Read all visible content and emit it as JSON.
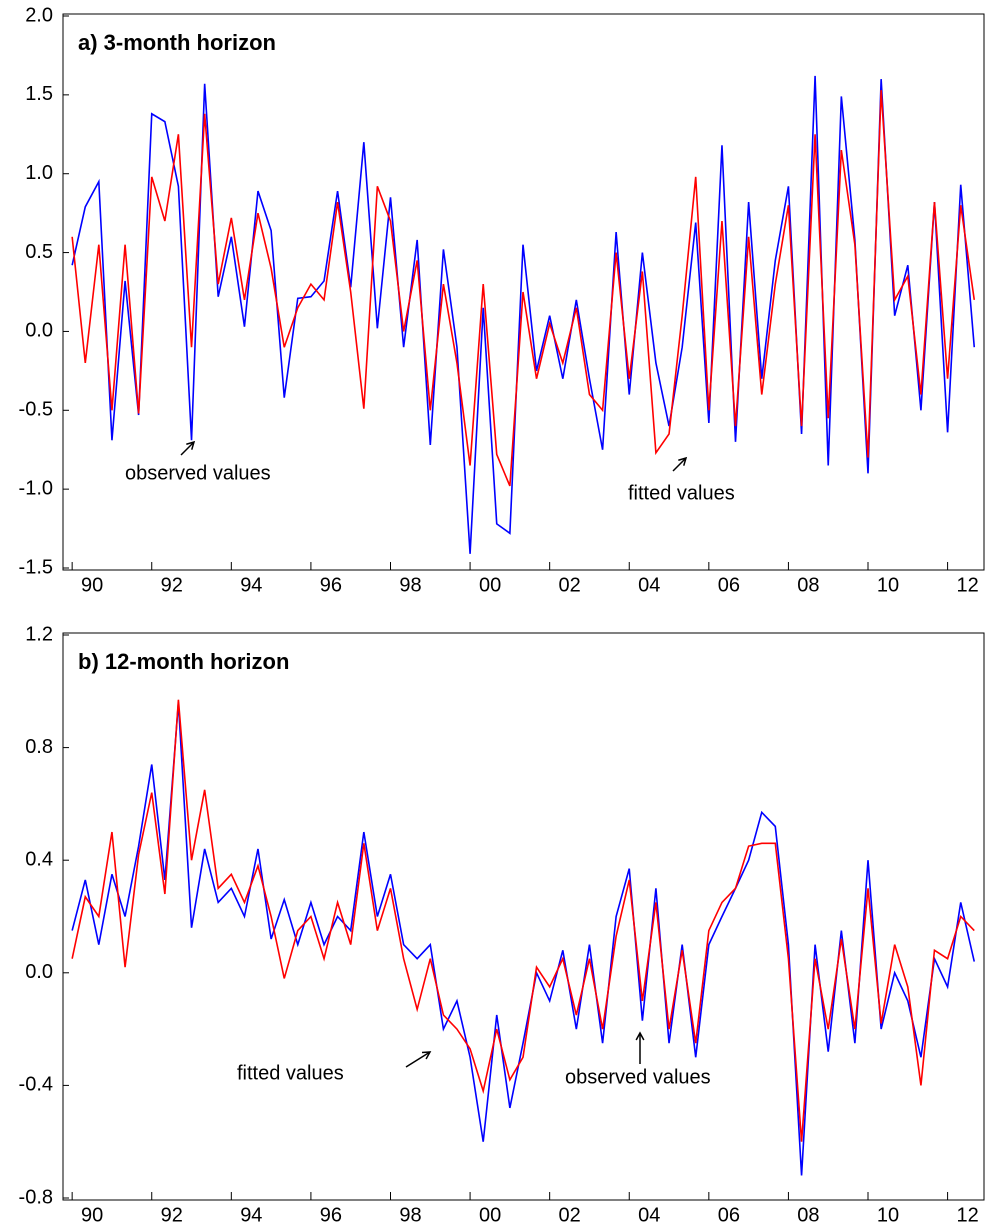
{
  "chart_data": [
    {
      "type": "line",
      "title": "a) 3-month horizon",
      "x": [
        1990,
        1990.33,
        1990.67,
        1991,
        1991.33,
        1991.67,
        1992,
        1992.33,
        1992.67,
        1993,
        1993.33,
        1993.67,
        1994,
        1994.33,
        1994.67,
        1995,
        1995.33,
        1995.67,
        1996,
        1996.33,
        1996.67,
        1997,
        1997.33,
        1997.67,
        1998,
        1998.33,
        1998.67,
        1999,
        1999.33,
        1999.67,
        2000,
        2000.33,
        2000.67,
        2001,
        2001.33,
        2001.67,
        2002,
        2002.33,
        2002.67,
        2003,
        2003.33,
        2003.67,
        2004,
        2004.33,
        2004.67,
        2005,
        2005.33,
        2005.67,
        2006,
        2006.33,
        2006.67,
        2007,
        2007.33,
        2007.67,
        2008,
        2008.33,
        2008.67,
        2009,
        2009.33,
        2009.67,
        2010,
        2010.33,
        2010.67,
        2011,
        2011.33,
        2011.67,
        2012,
        2012.33,
        2012.67
      ],
      "series": [
        {
          "color": "#0000ff",
          "values": [
            0.42,
            0.79,
            0.95,
            -0.69,
            0.32,
            -0.53,
            1.38,
            1.33,
            0.92,
            -0.69,
            1.57,
            0.22,
            0.6,
            0.03,
            0.89,
            0.64,
            -0.42,
            0.21,
            0.22,
            0.32,
            0.89,
            0.28,
            1.2,
            0.02,
            0.85,
            -0.1,
            0.58,
            -0.72,
            0.52,
            -0.1,
            -1.41,
            0.15,
            -1.22,
            -1.28,
            0.55,
            -0.25,
            0.1,
            -0.3,
            0.2,
            -0.3,
            -0.75,
            0.63,
            -0.4,
            0.5,
            -0.2,
            -0.6,
            -0.1,
            0.69,
            -0.58,
            1.18,
            -0.7,
            0.82,
            -0.3,
            0.45,
            0.92,
            -0.65,
            1.62,
            -0.85,
            1.49,
            0.58,
            -0.9,
            1.6,
            0.1,
            0.42,
            -0.5,
            0.82,
            -0.64,
            0.93,
            -0.1
          ]
        },
        {
          "color": "#ff0000",
          "values": [
            0.6,
            -0.2,
            0.55,
            -0.5,
            0.55,
            -0.52,
            0.98,
            0.7,
            1.25,
            -0.1,
            1.38,
            0.3,
            0.72,
            0.2,
            0.75,
            0.4,
            -0.1,
            0.15,
            0.3,
            0.2,
            0.82,
            0.25,
            -0.49,
            0.92,
            0.7,
            0.0,
            0.45,
            -0.5,
            0.3,
            -0.2,
            -0.85,
            0.3,
            -0.78,
            -0.98,
            0.25,
            -0.3,
            0.05,
            -0.2,
            0.15,
            -0.4,
            -0.5,
            0.5,
            -0.3,
            0.38,
            -0.77,
            -0.65,
            0.1,
            0.98,
            -0.5,
            0.7,
            -0.6,
            0.6,
            -0.4,
            0.3,
            0.8,
            -0.6,
            1.25,
            -0.55,
            1.15,
            0.55,
            -0.8,
            1.53,
            0.2,
            0.35,
            -0.4,
            0.82,
            -0.3,
            0.8,
            0.2
          ]
        }
      ],
      "xlim": [
        1989.77,
        2012.94
      ],
      "xticks": [
        {
          "value": 1990,
          "label": "90"
        },
        {
          "value": 1992,
          "label": "92"
        },
        {
          "value": 1994,
          "label": "94"
        },
        {
          "value": 1996,
          "label": "96"
        },
        {
          "value": 1998,
          "label": "98"
        },
        {
          "value": 2000,
          "label": "00"
        },
        {
          "value": 2002,
          "label": "02"
        },
        {
          "value": 2004,
          "label": "04"
        },
        {
          "value": 2006,
          "label": "06"
        },
        {
          "value": 2008,
          "label": "08"
        },
        {
          "value": 2010,
          "label": "10"
        },
        {
          "value": 2012,
          "label": "12"
        }
      ],
      "ylim": [
        -1.5,
        2.0
      ],
      "yticks": [
        {
          "value": 2,
          "label": "2.0"
        },
        1.5,
        {
          "value": 1,
          "label": "1.0"
        },
        0.5,
        {
          "value": 0,
          "label": "0.0"
        },
        -0.5,
        {
          "value": -1,
          "label": "-1.0"
        },
        -1.5
      ],
      "annotations": [
        "observed values",
        "fitted values"
      ]
    },
    {
      "type": "line",
      "title": "b) 12-month horizon",
      "x": [
        1990,
        1990.33,
        1990.67,
        1991,
        1991.33,
        1991.67,
        1992,
        1992.33,
        1992.67,
        1993,
        1993.33,
        1993.67,
        1994,
        1994.33,
        1994.67,
        1995,
        1995.33,
        1995.67,
        1996,
        1996.33,
        1996.67,
        1997,
        1997.33,
        1997.67,
        1998,
        1998.33,
        1998.67,
        1999,
        1999.33,
        1999.67,
        2000,
        2000.33,
        2000.67,
        2001,
        2001.33,
        2001.67,
        2002,
        2002.33,
        2002.67,
        2003,
        2003.33,
        2003.67,
        2004,
        2004.33,
        2004.67,
        2005,
        2005.33,
        2005.67,
        2006,
        2006.33,
        2006.67,
        2007,
        2007.33,
        2007.67,
        2008,
        2008.33,
        2008.67,
        2009,
        2009.33,
        2009.67,
        2010,
        2010.33,
        2010.67,
        2011,
        2011.33,
        2011.67,
        2012,
        2012.33,
        2012.67
      ],
      "series": [
        {
          "color": "#0000ff",
          "values": [
            0.15,
            0.33,
            0.1,
            0.35,
            0.2,
            0.45,
            0.74,
            0.33,
            0.96,
            0.16,
            0.44,
            0.25,
            0.3,
            0.2,
            0.44,
            0.12,
            0.26,
            0.1,
            0.25,
            0.1,
            0.2,
            0.15,
            0.5,
            0.2,
            0.35,
            0.1,
            0.05,
            0.1,
            -0.2,
            -0.1,
            -0.3,
            -0.6,
            -0.15,
            -0.48,
            -0.25,
            0.0,
            -0.1,
            0.08,
            -0.2,
            0.1,
            -0.25,
            0.2,
            0.37,
            -0.17,
            0.3,
            -0.25,
            0.1,
            -0.3,
            0.1,
            0.2,
            0.3,
            0.4,
            0.57,
            0.52,
            0.1,
            -0.72,
            0.1,
            -0.28,
            0.15,
            -0.25,
            0.4,
            -0.2,
            0.0,
            -0.1,
            -0.3,
            0.05,
            -0.05,
            0.25,
            0.04
          ]
        },
        {
          "color": "#ff0000",
          "values": [
            0.05,
            0.27,
            0.2,
            0.5,
            0.02,
            0.42,
            0.64,
            0.28,
            0.97,
            0.4,
            0.65,
            0.3,
            0.35,
            0.25,
            0.38,
            0.2,
            -0.02,
            0.15,
            0.2,
            0.05,
            0.25,
            0.1,
            0.46,
            0.15,
            0.3,
            0.05,
            -0.13,
            0.05,
            -0.15,
            -0.2,
            -0.27,
            -0.42,
            -0.2,
            -0.38,
            -0.3,
            0.02,
            -0.05,
            0.05,
            -0.15,
            0.05,
            -0.2,
            0.13,
            0.33,
            -0.1,
            0.25,
            -0.2,
            0.08,
            -0.25,
            0.15,
            0.25,
            0.3,
            0.45,
            0.46,
            0.46,
            0.05,
            -0.6,
            0.05,
            -0.2,
            0.12,
            -0.2,
            0.3,
            -0.18,
            0.1,
            -0.05,
            -0.4,
            0.08,
            0.05,
            0.2,
            0.15
          ]
        }
      ],
      "xlim": [
        1989.77,
        2012.94
      ],
      "xticks": [
        {
          "value": 1990,
          "label": "90"
        },
        {
          "value": 1992,
          "label": "92"
        },
        {
          "value": 1994,
          "label": "94"
        },
        {
          "value": 1996,
          "label": "96"
        },
        {
          "value": 1998,
          "label": "98"
        },
        {
          "value": 2000,
          "label": "00"
        },
        {
          "value": 2002,
          "label": "02"
        },
        {
          "value": 2004,
          "label": "04"
        },
        {
          "value": 2006,
          "label": "06"
        },
        {
          "value": 2008,
          "label": "08"
        },
        {
          "value": 2010,
          "label": "10"
        },
        {
          "value": 2012,
          "label": "12"
        }
      ],
      "ylim": [
        -0.8,
        1.2
      ],
      "yticks": [
        1.2,
        0.8,
        0.4,
        {
          "value": 0,
          "label": "0.0"
        },
        -0.4,
        -0.8
      ],
      "annotations": [
        "fitted values",
        "observed values"
      ]
    }
  ]
}
